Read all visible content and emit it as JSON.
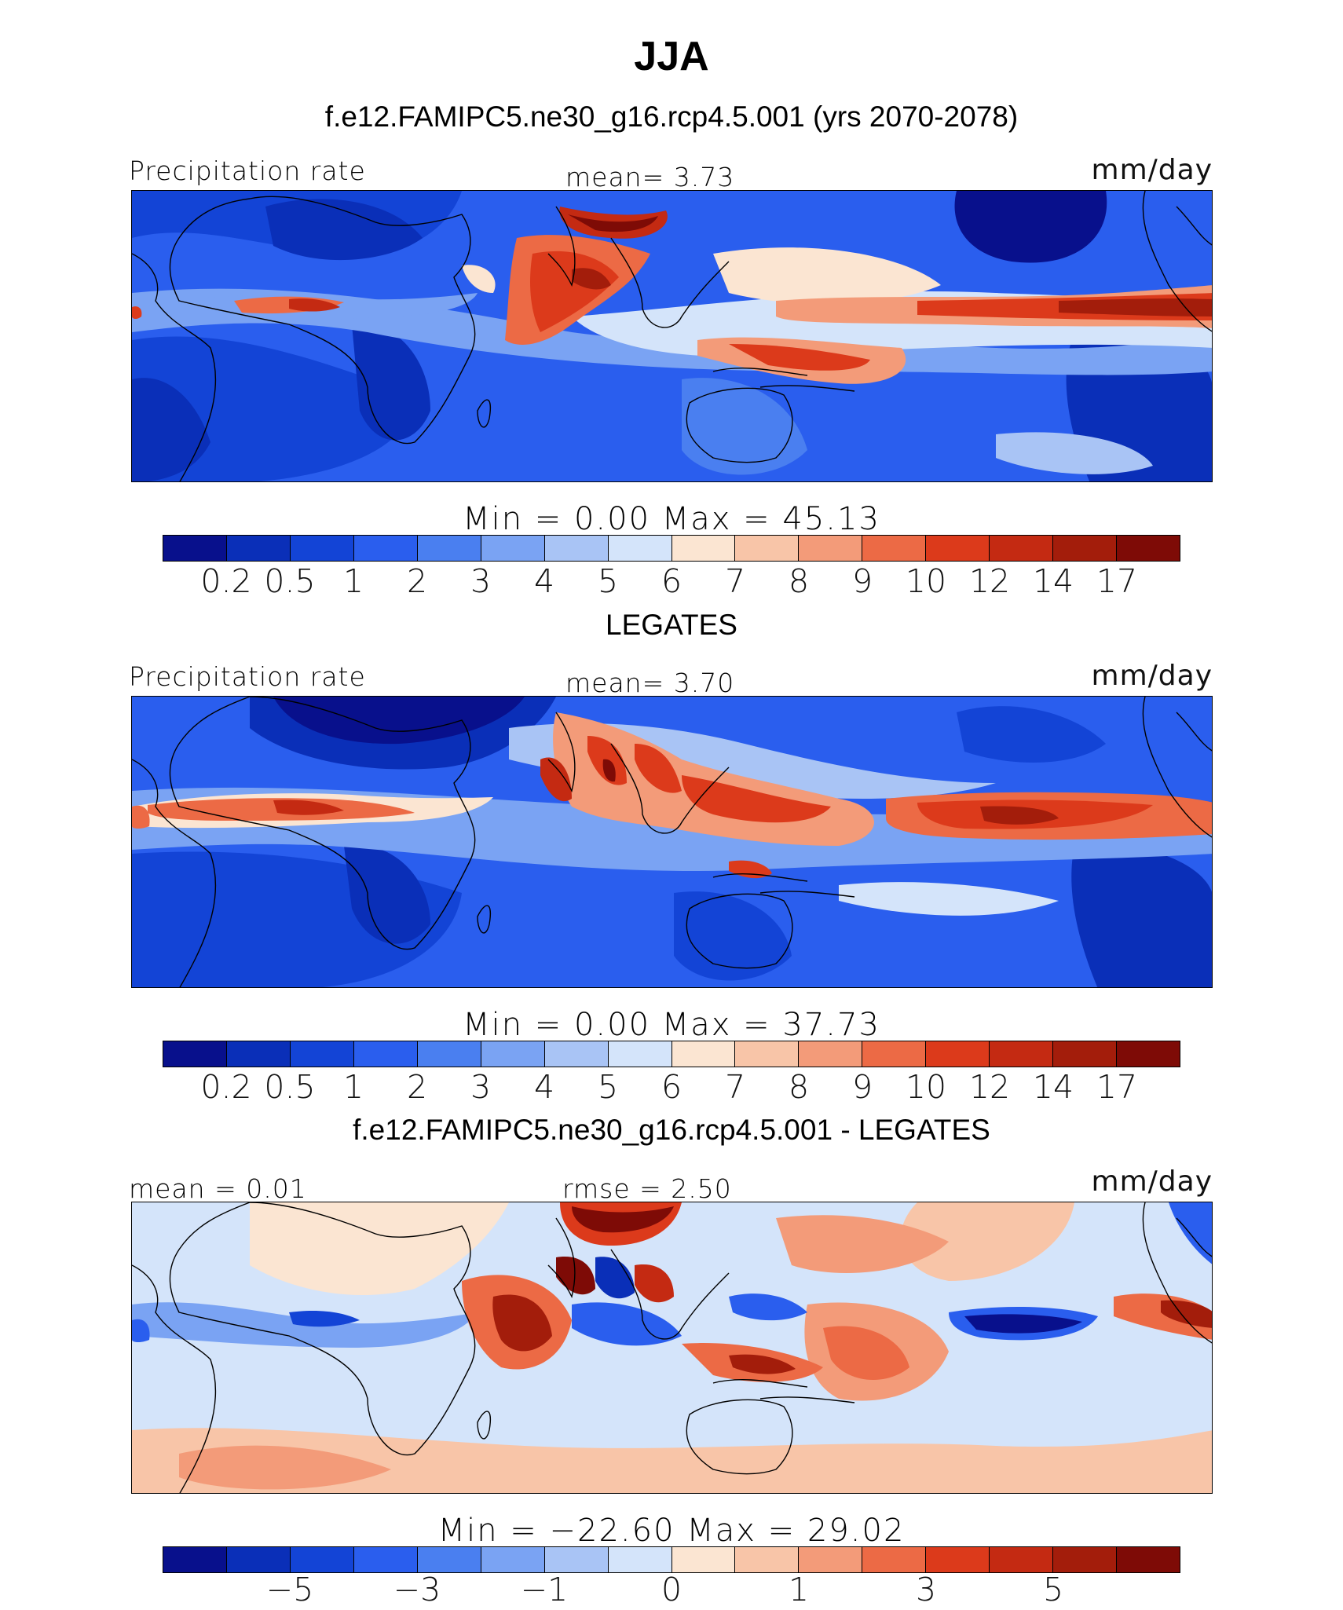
{
  "figure": {
    "title": "JJA",
    "units": "mm/day",
    "variable": "Precipitation rate"
  },
  "colors": {
    "abs_scale": [
      "#08108c",
      "#0a2fb8",
      "#1344d6",
      "#2a5eee",
      "#4a7ff0",
      "#7aa3f3",
      "#a9c4f5",
      "#d4e4fa",
      "#fbe5d2",
      "#f8c5a8",
      "#f39b79",
      "#ec6a45",
      "#dc3a1b",
      "#c42a12",
      "#a31d0b",
      "#7e0b06"
    ],
    "diff_scale": [
      "#08108c",
      "#0a2fb8",
      "#1344d6",
      "#2a5eee",
      "#4a7ff0",
      "#7aa3f3",
      "#a9c4f5",
      "#d4e4fa",
      "#fbe5d2",
      "#f8c5a8",
      "#f39b79",
      "#ec6a45",
      "#dc3a1b",
      "#c42a12",
      "#a31d0b",
      "#7e0b06"
    ]
  },
  "panels": [
    {
      "heading": "f.e12.FAMIPC5.ne30_g16.rcp4.5.001 (yrs 2070-2078)",
      "left_label": "Precipitation rate",
      "center_label": "mean=   3.73",
      "right_label": "mm/day",
      "minmax": "Min  =     0.00  Max  =    45.13",
      "ticks": [
        "0.2",
        "0.5",
        "1",
        "2",
        "3",
        "4",
        "5",
        "6",
        "7",
        "8",
        "9",
        "10",
        "12",
        "14",
        "17"
      ]
    },
    {
      "heading": "LEGATES",
      "left_label": "Precipitation rate",
      "center_label": "mean=   3.70",
      "right_label": "mm/day",
      "minmax": "Min  =     0.00  Max  =    37.73",
      "ticks": [
        "0.2",
        "0.5",
        "1",
        "2",
        "3",
        "4",
        "5",
        "6",
        "7",
        "8",
        "9",
        "10",
        "12",
        "14",
        "17"
      ]
    },
    {
      "heading": "f.e12.FAMIPC5.ne30_g16.rcp4.5.001 - LEGATES",
      "left_label": "mean  =    0.01",
      "center_label": "rmse  =    2.50",
      "right_label": "mm/day",
      "minmax": "Min  = −22.60  Max  =    29.02",
      "ticks": [
        "−5",
        "−3",
        "−1",
        "0",
        "1",
        "3",
        "5"
      ]
    }
  ],
  "chart_data": {
    "type": "heatmap",
    "title": "JJA",
    "season": "JJA",
    "variable": "Precipitation rate",
    "units": "mm/day",
    "maps": [
      {
        "name": "f.e12.FAMIPC5.ne30_g16.rcp4.5.001 (yrs 2070-2078)",
        "mean": 3.73,
        "min": 0.0,
        "max": 45.13,
        "levels": [
          0.2,
          0.5,
          1,
          2,
          3,
          4,
          5,
          6,
          7,
          8,
          9,
          10,
          12,
          14,
          17
        ]
      },
      {
        "name": "LEGATES",
        "mean": 3.7,
        "min": 0.0,
        "max": 37.73,
        "levels": [
          0.2,
          0.5,
          1,
          2,
          3,
          4,
          5,
          6,
          7,
          8,
          9,
          10,
          12,
          14,
          17
        ]
      },
      {
        "name": "f.e12.FAMIPC5.ne30_g16.rcp4.5.001 - LEGATES",
        "mean": 0.01,
        "rmse": 2.5,
        "min": -22.6,
        "max": 29.02,
        "levels": [
          -5,
          -3,
          -1,
          0,
          1,
          3,
          5
        ]
      }
    ]
  }
}
